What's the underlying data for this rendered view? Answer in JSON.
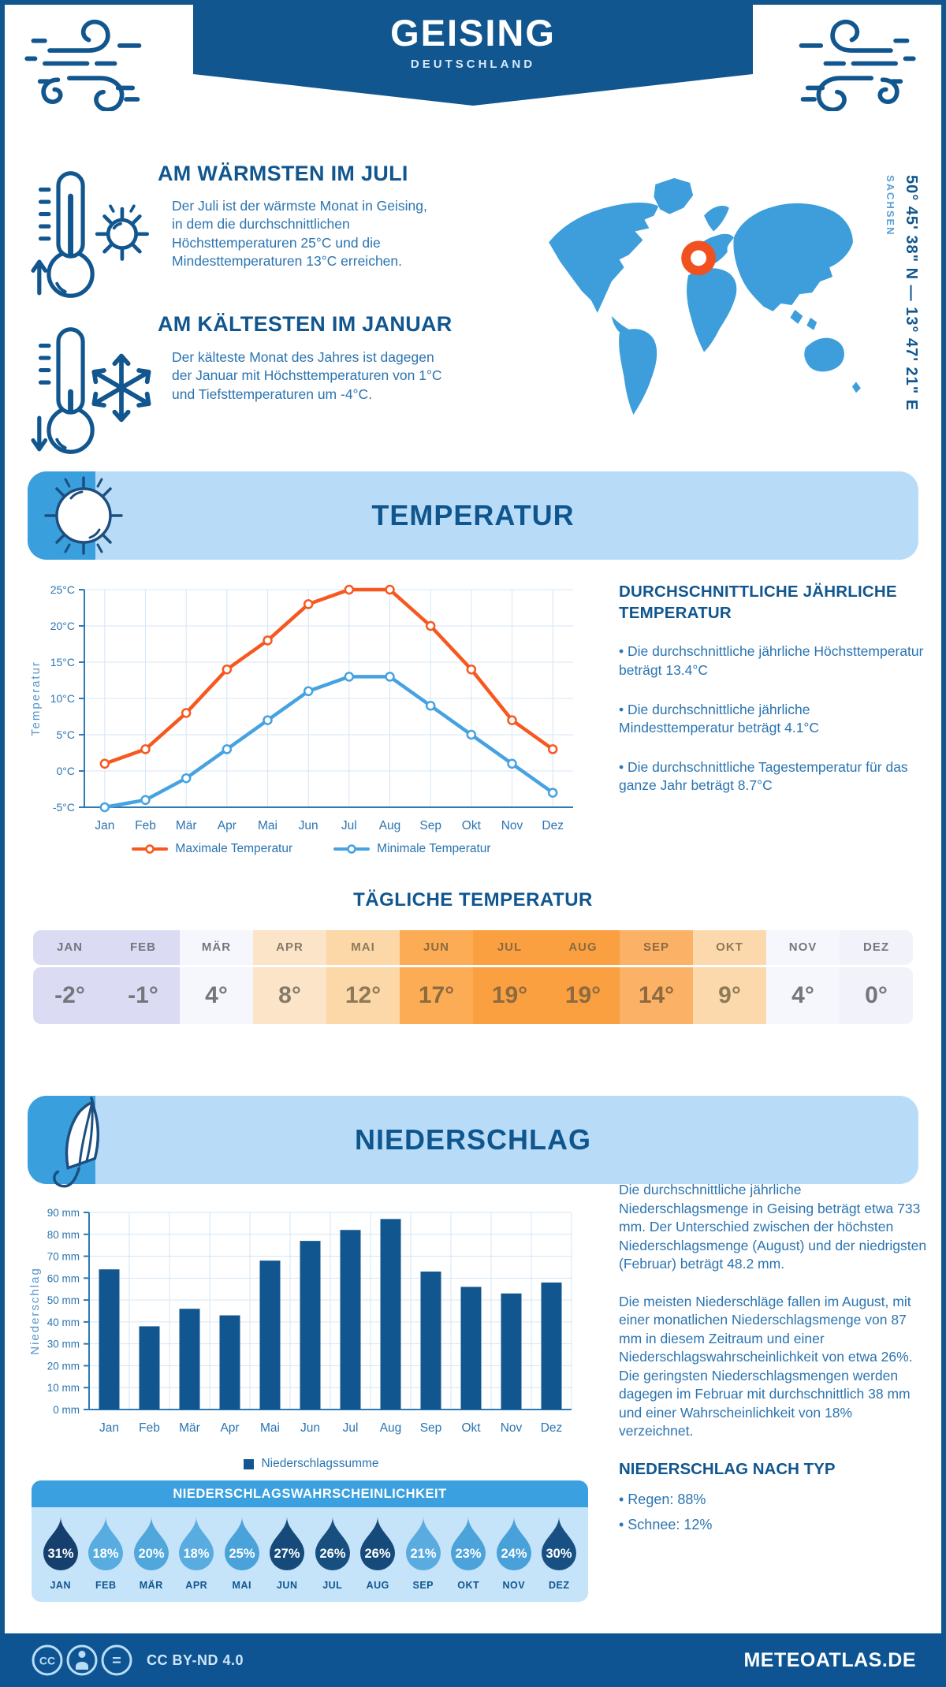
{
  "header": {
    "title": "GEISING",
    "subtitle": "DEUTSCHLAND",
    "region": "SACHSEN",
    "coordinates": "50° 45' 38\" N — 13° 47' 21\" E"
  },
  "highlights": {
    "warmest": {
      "heading": "AM WÄRMSTEN IM JULI",
      "text": "Der Juli ist der wärmste Monat in Geising, in dem die durchschnittlichen Höchsttemperaturen 25°C und die Mindesttemperaturen 13°C erreichen."
    },
    "coldest": {
      "heading": "AM KÄLTESTEN IM JANUAR",
      "text": "Der kälteste Monat des Jahres ist dagegen der Januar mit Höchsttemperaturen von 1°C und Tiefsttemperaturen um -4°C."
    }
  },
  "temperature_section": {
    "banner": "TEMPERATUR",
    "stats_heading": "DURCHSCHNITTLICHE JÄHRLICHE TEMPERATUR",
    "bullets": [
      "• Die durchschnittliche jährliche Höchsttemperatur beträgt 13.4°C",
      "• Die durchschnittliche jährliche Mindesttemperatur beträgt 4.1°C",
      "• Die durchschnittliche Tagestemperatur für das ganze Jahr beträgt 8.7°C"
    ],
    "daily_heading": "TÄGLICHE TEMPERATUR",
    "daily": {
      "months": [
        "JAN",
        "FEB",
        "MÄR",
        "APR",
        "MAI",
        "JUN",
        "JUL",
        "AUG",
        "SEP",
        "OKT",
        "NOV",
        "DEZ"
      ],
      "values": [
        "-2°",
        "-1°",
        "4°",
        "8°",
        "12°",
        "17°",
        "19°",
        "19°",
        "14°",
        "9°",
        "4°",
        "0°"
      ],
      "bg": [
        "#dbdcf4",
        "#dbdcf4",
        "#f6f7fc",
        "#fbe4c8",
        "#fcd7a7",
        "#fbac55",
        "#faa041",
        "#faa041",
        "#fbb267",
        "#fcd9ac",
        "#f6f7fc",
        "#f1f2fa"
      ],
      "fg": [
        "#75767c",
        "#75767c",
        "#75767c",
        "#857b6b",
        "#8d7a58",
        "#8d6a3f",
        "#8d6a3f",
        "#8d6a3f",
        "#8d6a3f",
        "#8d7a58",
        "#75767c",
        "#75767c"
      ]
    }
  },
  "precipitation_section": {
    "banner": "NIEDERSCHLAG",
    "paragraphs": [
      "Die durchschnittliche jährliche Niederschlagsmenge in Geising beträgt etwa 733 mm. Der Unterschied zwischen der höchsten Niederschlagsmenge (August) und der niedrigsten (Februar) beträgt 48.2 mm.",
      "Die meisten Niederschläge fallen im August, mit einer monatlichen Niederschlagsmenge von 87 mm in diesem Zeitraum und einer Niederschlagswahrscheinlichkeit von etwa 26%. Die geringsten Niederschlagsmengen werden dagegen im Februar mit durchschnittlich 38 mm und einer Wahrscheinlichkeit von 18% verzeichnet."
    ],
    "type_heading": "NIEDERSCHLAG NACH TYP",
    "type_bullets": [
      "• Regen: 88%",
      "• Schnee: 12%"
    ],
    "probability": {
      "title": "NIEDERSCHLAGSWAHRSCHEINLICHKEIT",
      "months": [
        "JAN",
        "FEB",
        "MÄR",
        "APR",
        "MAI",
        "JUN",
        "JUL",
        "AUG",
        "SEP",
        "OKT",
        "NOV",
        "DEZ"
      ],
      "values": [
        31,
        18,
        20,
        18,
        25,
        27,
        26,
        26,
        21,
        23,
        24,
        30
      ],
      "drop_colors": [
        "#153f6d",
        "#58ace0",
        "#50a7dc",
        "#58ace0",
        "#49a2d9",
        "#164a7a",
        "#17507f",
        "#164a7a",
        "#5aace0",
        "#4ba3da",
        "#48a1d8",
        "#185083"
      ]
    }
  },
  "chart_data": [
    {
      "type": "line",
      "title": "Monatliche Höchst- und Tiefsttemperaturen",
      "x": [
        "Jan",
        "Feb",
        "Mär",
        "Apr",
        "Mai",
        "Jun",
        "Jul",
        "Aug",
        "Sep",
        "Okt",
        "Nov",
        "Dez"
      ],
      "series": [
        {
          "name": "Maximale Temperatur",
          "values": [
            1,
            3,
            8,
            14,
            18,
            23,
            25,
            25,
            20,
            14,
            7,
            3
          ],
          "color": "#f6581f"
        },
        {
          "name": "Minimale Temperatur",
          "values": [
            -5,
            -4,
            -1,
            3,
            7,
            11,
            13,
            13,
            9,
            5,
            1,
            -3
          ],
          "color": "#46a2e0"
        }
      ],
      "xlabel": "",
      "ylabel": "Temperatur",
      "ylim": [
        -5,
        25
      ],
      "ytick_step": 5,
      "ytick_suffix": "°C",
      "grid": true,
      "legend_position": "bottom"
    },
    {
      "type": "bar",
      "title": "Monatliche Niederschlagssumme",
      "categories": [
        "Jan",
        "Feb",
        "Mär",
        "Apr",
        "Mai",
        "Jun",
        "Jul",
        "Aug",
        "Sep",
        "Okt",
        "Nov",
        "Dez"
      ],
      "values": [
        64,
        38,
        46,
        43,
        68,
        77,
        82,
        87,
        63,
        56,
        53,
        58
      ],
      "legend": "Niederschlagssumme",
      "color": "#11568e",
      "xlabel": "",
      "ylabel": "Niederschlag",
      "ylim": [
        0,
        90
      ],
      "ytick_step": 10,
      "ytick_suffix": " mm",
      "grid": true,
      "legend_position": "bottom"
    }
  ],
  "footer": {
    "license": "CC BY-ND 4.0",
    "site": "METEOATLAS.DE"
  },
  "colors": {
    "dark_blue": "#11568e",
    "body_blue": "#2b74b0",
    "banner_light": "#b8dcf8",
    "banner_strip": "#3a9fdd",
    "map_blue": "#3d9edb",
    "marker_orange": "#f0511f",
    "panel_light": "#c5e3f9",
    "panel_header": "#3aa0df",
    "footer_bg": "#0e5492"
  }
}
